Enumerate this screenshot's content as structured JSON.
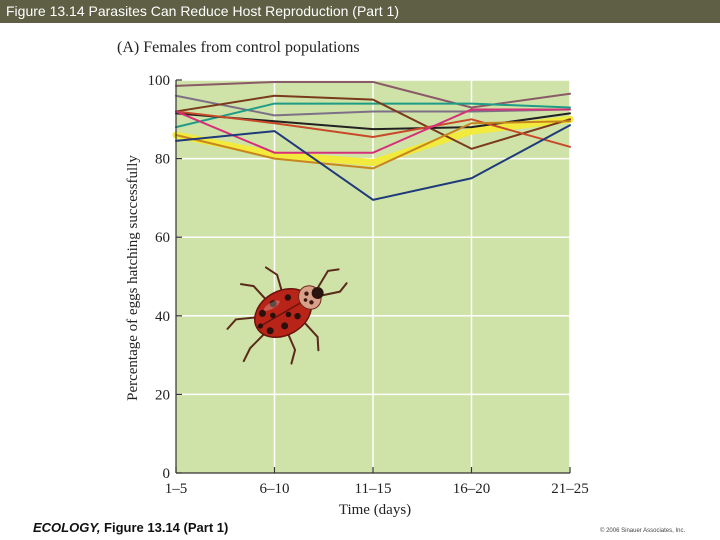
{
  "header": {
    "title": "Figure 13.14  Parasites Can Reduce Host Reproduction (Part 1)"
  },
  "footer": {
    "caption_bold_italic": "ECOLOGY,",
    "caption_rest": " Figure 13.14 (Part 1)",
    "copyright": "© 2006 Sinauer Associates, Inc."
  },
  "colors": {
    "header_bg": "#5f5f45",
    "plot_bg": "#cfe3a8",
    "gridline": "#ffffff"
  },
  "decoration": {
    "icon": "ladybug-icon"
  },
  "chart_data": {
    "type": "line",
    "title": "(A)  Females from control populations",
    "xlabel": "Time (days)",
    "ylabel": "Percentage of eggs hatching successfully",
    "categories": [
      "1–5",
      "6–10",
      "11–15",
      "16–20",
      "21–25"
    ],
    "ylim": [
      0,
      100
    ],
    "yticks": [
      0,
      20,
      40,
      60,
      80,
      100
    ],
    "grid": true,
    "series": [
      {
        "name": "yellow",
        "color": "#f2ea3c",
        "width": 7,
        "values": [
          86,
          81,
          79,
          87,
          90
        ]
      },
      {
        "name": "mauve",
        "color": "#8a5a68",
        "values": [
          98.5,
          99.5,
          99.5,
          93,
          96.5
        ]
      },
      {
        "name": "gray-purple",
        "color": "#7d6f86",
        "values": [
          96,
          91,
          92,
          92,
          92.5
        ]
      },
      {
        "name": "teal",
        "color": "#1f9c86",
        "values": [
          88,
          94,
          94,
          94,
          93
        ]
      },
      {
        "name": "brown",
        "color": "#7a3a1c",
        "values": [
          92,
          96,
          95,
          82.5,
          90
        ]
      },
      {
        "name": "black",
        "color": "#222222",
        "values": [
          91.5,
          89.5,
          87.5,
          88,
          91.5
        ]
      },
      {
        "name": "red",
        "color": "#c84a2a",
        "values": [
          92,
          89,
          85.5,
          90,
          83
        ]
      },
      {
        "name": "magenta",
        "color": "#d6307a",
        "values": [
          92,
          81.5,
          81.5,
          92.5,
          92.5
        ]
      },
      {
        "name": "orange",
        "color": "#c8861e",
        "values": [
          86,
          80,
          77.5,
          89,
          89.5
        ]
      },
      {
        "name": "navy",
        "color": "#1e3a7a",
        "values": [
          84.5,
          87,
          69.5,
          75,
          88.5
        ]
      }
    ]
  }
}
